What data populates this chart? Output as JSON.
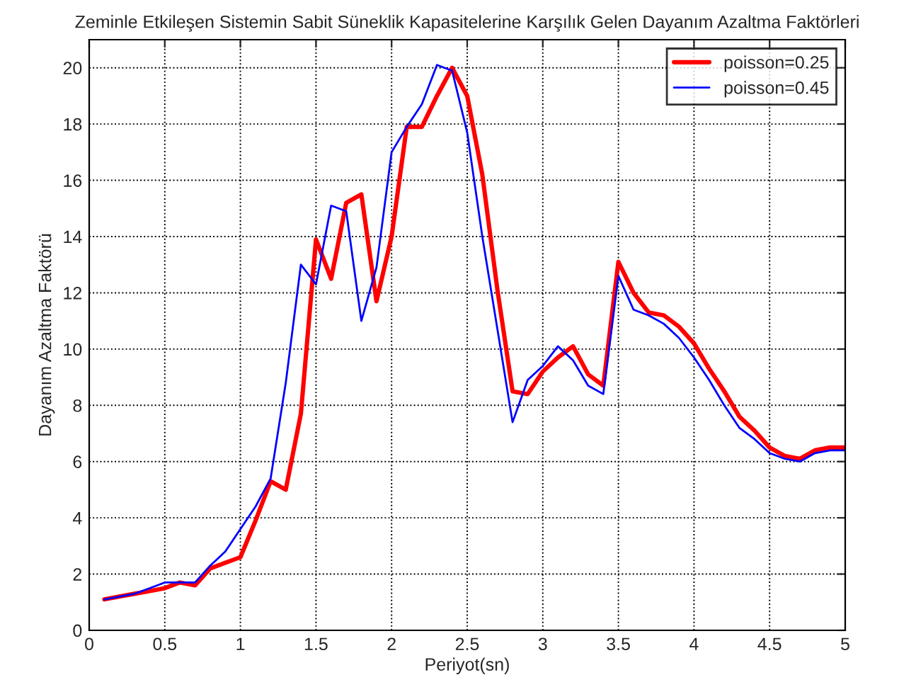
{
  "chart_data": {
    "type": "line",
    "title": "Zeminle Etkileşen Sistemin Sabit Süneklik Kapasitelerine Karşılık Gelen Dayanım Azaltma Faktörleri",
    "xlabel": "Periyot(sn)",
    "ylabel": "Dayanım Azaltma Faktörü",
    "x": [
      0.1,
      0.2,
      0.3,
      0.4,
      0.5,
      0.6,
      0.7,
      0.8,
      0.9,
      1.0,
      1.1,
      1.2,
      1.3,
      1.4,
      1.5,
      1.6,
      1.7,
      1.8,
      1.9,
      2.0,
      2.1,
      2.2,
      2.3,
      2.4,
      2.5,
      2.6,
      2.7,
      2.8,
      2.9,
      3.0,
      3.1,
      3.2,
      3.3,
      3.4,
      3.5,
      3.6,
      3.7,
      3.8,
      3.9,
      4.0,
      4.1,
      4.2,
      4.3,
      4.4,
      4.5,
      4.6,
      4.7,
      4.8,
      4.9,
      5.0
    ],
    "series": [
      {
        "name": "poisson=0.25",
        "color": "#ff0000",
        "values": [
          1.1,
          1.2,
          1.3,
          1.4,
          1.5,
          1.7,
          1.6,
          2.2,
          2.4,
          2.6,
          3.9,
          5.3,
          5.0,
          7.7,
          13.9,
          12.5,
          15.2,
          15.5,
          11.7,
          14.0,
          17.9,
          17.9,
          19.0,
          20.0,
          19.0,
          16.2,
          12.1,
          8.5,
          8.4,
          9.2,
          9.7,
          10.1,
          9.1,
          8.7,
          13.1,
          12.0,
          11.3,
          11.2,
          10.8,
          10.2,
          9.3,
          8.5,
          7.6,
          7.1,
          6.5,
          6.2,
          6.1,
          6.4,
          6.5,
          6.5
        ]
      },
      {
        "name": "poisson=0.45",
        "color": "#0000ff",
        "values": [
          1.1,
          1.2,
          1.3,
          1.5,
          1.7,
          1.7,
          1.7,
          2.3,
          2.8,
          3.6,
          4.4,
          5.4,
          8.8,
          13.0,
          12.3,
          15.1,
          14.9,
          11.0,
          12.9,
          17.0,
          17.9,
          18.7,
          20.1,
          19.9,
          17.7,
          14.0,
          10.7,
          7.4,
          8.9,
          9.4,
          10.1,
          9.6,
          8.7,
          8.4,
          12.6,
          11.4,
          11.2,
          10.9,
          10.4,
          9.7,
          8.9,
          8.0,
          7.2,
          6.8,
          6.3,
          6.1,
          6.0,
          6.3,
          6.4,
          6.4
        ]
      }
    ],
    "xlim": [
      0,
      5
    ],
    "ylim": [
      0,
      21
    ],
    "xticks": [
      0,
      0.5,
      1,
      1.5,
      2,
      2.5,
      3,
      3.5,
      4,
      4.5,
      5
    ],
    "yticks": [
      0,
      2,
      4,
      6,
      8,
      10,
      12,
      14,
      16,
      18,
      20
    ],
    "grid": true,
    "legend": "top right",
    "line_style": "solid",
    "marker": "none"
  }
}
